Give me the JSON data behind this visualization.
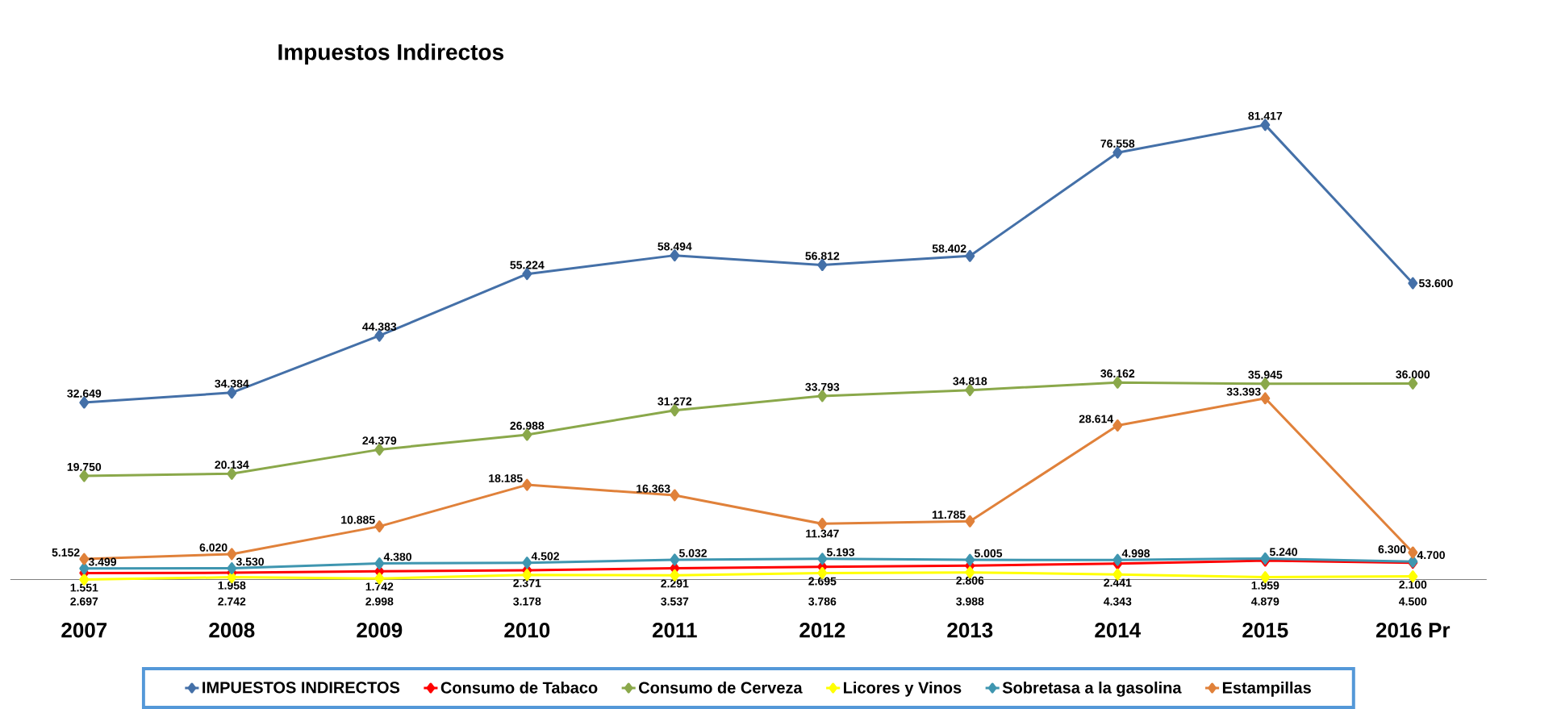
{
  "chart_data": {
    "type": "line",
    "title": "Impuestos Indirectos",
    "categories": [
      "2007",
      "2008",
      "2009",
      "2010",
      "2011",
      "2012",
      "2013",
      "2014",
      "2015",
      "2016 Pr"
    ],
    "series": [
      {
        "name": "IMPUESTOS INDIRECTOS",
        "color": "#4470a8",
        "values": [
          32.649,
          34.384,
          44.383,
          55.224,
          58.494,
          56.812,
          58.402,
          76.558,
          81.417,
          53.6
        ],
        "value_labels": [
          "32.649",
          "34.384",
          "44.383",
          "55.224",
          "58.494",
          "56.812",
          "58.402",
          "76.558",
          "81.417",
          "53.600"
        ]
      },
      {
        "name": "Consumo de Tabaco",
        "color": "#ff0000",
        "values": [
          2.697,
          2.742,
          2.998,
          3.178,
          3.537,
          3.786,
          3.988,
          4.343,
          4.879,
          4.5
        ],
        "value_labels": [
          "2.697",
          "2.742",
          "2.998",
          "3.178",
          "3.537",
          "3.786",
          "3.988",
          "4.343",
          "4.879",
          "4.500"
        ]
      },
      {
        "name": "Consumo de Cerveza",
        "color": "#8aa84a",
        "values": [
          19.75,
          20.134,
          24.379,
          26.988,
          31.272,
          33.793,
          34.818,
          36.162,
          35.945,
          36.0
        ],
        "value_labels": [
          "19.750",
          "20.134",
          "24.379",
          "26.988",
          "31.272",
          "33.793",
          "34.818",
          "36.162",
          "35.945",
          "36.000"
        ]
      },
      {
        "name": "Licores y Vinos",
        "color": "#ffff00",
        "values": [
          1.551,
          1.958,
          1.742,
          2.371,
          2.291,
          2.695,
          2.806,
          2.441,
          1.959,
          2.1
        ],
        "value_labels": [
          "1.551",
          "1.958",
          "1.742",
          "2.371",
          "2.291",
          "2.695",
          "2.806",
          "2.441",
          "1.959",
          "2.100"
        ]
      },
      {
        "name": "Sobretasa a la gasolina",
        "color": "#3f96b0",
        "values": [
          3.499,
          3.53,
          4.38,
          4.502,
          5.032,
          5.193,
          5.005,
          4.998,
          5.24,
          4.7
        ],
        "value_labels": [
          "3.499",
          "3.530",
          "4.380",
          "4.502",
          "5.032",
          "5.193",
          "5.005",
          "4.998",
          "5.240",
          "4.700"
        ]
      },
      {
        "name": "Estampillas",
        "color": "#e0813a",
        "values": [
          5.152,
          6.02,
          10.885,
          18.185,
          16.363,
          11.347,
          11.785,
          28.614,
          33.393,
          6.3
        ],
        "value_labels": [
          "5.152",
          "6.020",
          "10.885",
          "18.185",
          "16.363",
          "11.347",
          "11.785",
          "28.614",
          "33.393",
          "6.300"
        ]
      }
    ],
    "marker": "diamond",
    "legend": "bottom",
    "grid": false
  }
}
